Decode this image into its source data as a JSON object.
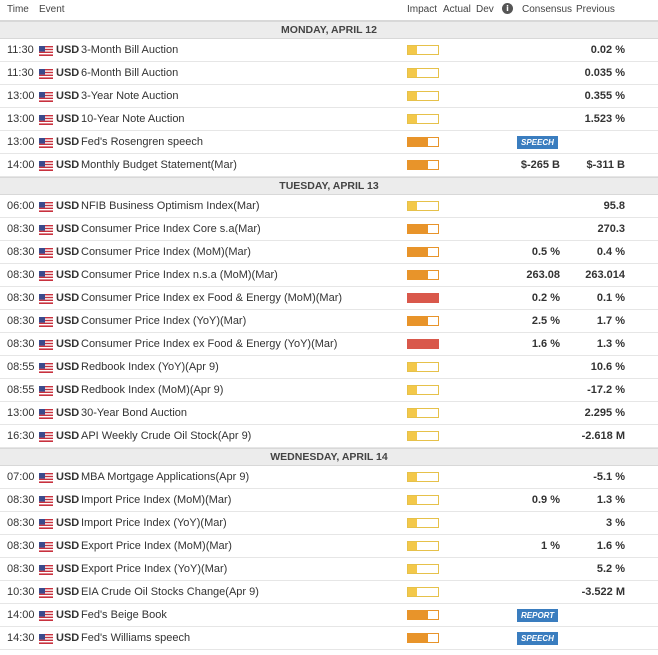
{
  "header": {
    "time": "Time",
    "event": "Event",
    "impact": "Impact",
    "actual": "Actual",
    "dev": "Dev",
    "info_icon": "i",
    "consensus": "Consensus",
    "previous": "Previous"
  },
  "colors": {
    "low": "#f3c84a",
    "medium": "#e8942a",
    "high": "#d9584b",
    "badge": "#3a7dbf"
  },
  "days": [
    {
      "label": "MONDAY, APRIL 12",
      "events": [
        {
          "time": "11:30",
          "currency": "USD",
          "flag": "us-flag-icon",
          "event": "3-Month Bill Auction",
          "impact": "low",
          "consensus": "",
          "previous": "0.02 %",
          "badge": ""
        },
        {
          "time": "11:30",
          "currency": "USD",
          "flag": "us-flag-icon",
          "event": "6-Month Bill Auction",
          "impact": "low",
          "consensus": "",
          "previous": "0.035 %",
          "badge": ""
        },
        {
          "time": "13:00",
          "currency": "USD",
          "flag": "us-flag-icon",
          "event": "3-Year Note Auction",
          "impact": "low",
          "consensus": "",
          "previous": "0.355 %",
          "badge": ""
        },
        {
          "time": "13:00",
          "currency": "USD",
          "flag": "us-flag-icon",
          "event": "10-Year Note Auction",
          "impact": "low",
          "consensus": "",
          "previous": "1.523 %",
          "badge": ""
        },
        {
          "time": "13:00",
          "currency": "USD",
          "flag": "us-flag-icon",
          "event": "Fed's Rosengren speech",
          "impact": "medium",
          "consensus": "",
          "previous": "",
          "badge": "SPEECH"
        },
        {
          "time": "14:00",
          "currency": "USD",
          "flag": "us-flag-icon",
          "event": "Monthly Budget Statement(Mar)",
          "impact": "medium",
          "consensus": "$-265 B",
          "previous": "$-311 B",
          "badge": ""
        }
      ]
    },
    {
      "label": "TUESDAY, APRIL 13",
      "events": [
        {
          "time": "06:00",
          "currency": "USD",
          "flag": "us-flag-icon",
          "event": "NFIB Business Optimism Index(Mar)",
          "impact": "low",
          "consensus": "",
          "previous": "95.8",
          "badge": ""
        },
        {
          "time": "08:30",
          "currency": "USD",
          "flag": "us-flag-icon",
          "event": "Consumer Price Index Core s.a(Mar)",
          "impact": "medium",
          "consensus": "",
          "previous": "270.3",
          "badge": ""
        },
        {
          "time": "08:30",
          "currency": "USD",
          "flag": "us-flag-icon",
          "event": "Consumer Price Index (MoM)(Mar)",
          "impact": "medium",
          "consensus": "0.5 %",
          "previous": "0.4 %",
          "badge": ""
        },
        {
          "time": "08:30",
          "currency": "USD",
          "flag": "us-flag-icon",
          "event": "Consumer Price Index n.s.a (MoM)(Mar)",
          "impact": "medium",
          "consensus": "263.08",
          "previous": "263.014",
          "badge": ""
        },
        {
          "time": "08:30",
          "currency": "USD",
          "flag": "us-flag-icon",
          "event": "Consumer Price Index ex Food & Energy (MoM)(Mar)",
          "impact": "high",
          "consensus": "0.2 %",
          "previous": "0.1 %",
          "badge": ""
        },
        {
          "time": "08:30",
          "currency": "USD",
          "flag": "us-flag-icon",
          "event": "Consumer Price Index (YoY)(Mar)",
          "impact": "medium",
          "consensus": "2.5 %",
          "previous": "1.7 %",
          "badge": ""
        },
        {
          "time": "08:30",
          "currency": "USD",
          "flag": "us-flag-icon",
          "event": "Consumer Price Index ex Food & Energy (YoY)(Mar)",
          "impact": "high",
          "consensus": "1.6 %",
          "previous": "1.3 %",
          "badge": ""
        },
        {
          "time": "08:55",
          "currency": "USD",
          "flag": "us-flag-icon",
          "event": "Redbook Index (YoY)(Apr 9)",
          "impact": "low",
          "consensus": "",
          "previous": "10.6 %",
          "badge": ""
        },
        {
          "time": "08:55",
          "currency": "USD",
          "flag": "us-flag-icon",
          "event": "Redbook Index (MoM)(Apr 9)",
          "impact": "low",
          "consensus": "",
          "previous": "-17.2 %",
          "badge": ""
        },
        {
          "time": "13:00",
          "currency": "USD",
          "flag": "us-flag-icon",
          "event": "30-Year Bond Auction",
          "impact": "low",
          "consensus": "",
          "previous": "2.295 %",
          "badge": ""
        },
        {
          "time": "16:30",
          "currency": "USD",
          "flag": "us-flag-icon",
          "event": "API Weekly Crude Oil Stock(Apr 9)",
          "impact": "low",
          "consensus": "",
          "previous": "-2.618 M",
          "badge": ""
        }
      ]
    },
    {
      "label": "WEDNESDAY, APRIL 14",
      "events": [
        {
          "time": "07:00",
          "currency": "USD",
          "flag": "us-flag-icon",
          "event": "MBA Mortgage Applications(Apr 9)",
          "impact": "low",
          "consensus": "",
          "previous": "-5.1 %",
          "badge": ""
        },
        {
          "time": "08:30",
          "currency": "USD",
          "flag": "us-flag-icon",
          "event": "Import Price Index (MoM)(Mar)",
          "impact": "low",
          "consensus": "0.9 %",
          "previous": "1.3 %",
          "badge": ""
        },
        {
          "time": "08:30",
          "currency": "USD",
          "flag": "us-flag-icon",
          "event": "Import Price Index (YoY)(Mar)",
          "impact": "low",
          "consensus": "",
          "previous": "3 %",
          "badge": ""
        },
        {
          "time": "08:30",
          "currency": "USD",
          "flag": "us-flag-icon",
          "event": "Export Price Index (MoM)(Mar)",
          "impact": "low",
          "consensus": "1 %",
          "previous": "1.6 %",
          "badge": ""
        },
        {
          "time": "08:30",
          "currency": "USD",
          "flag": "us-flag-icon",
          "event": "Export Price Index (YoY)(Mar)",
          "impact": "low",
          "consensus": "",
          "previous": "5.2 %",
          "badge": ""
        },
        {
          "time": "10:30",
          "currency": "USD",
          "flag": "us-flag-icon",
          "event": "EIA Crude Oil Stocks Change(Apr 9)",
          "impact": "low",
          "consensus": "",
          "previous": "-3.522 M",
          "badge": ""
        },
        {
          "time": "14:00",
          "currency": "USD",
          "flag": "us-flag-icon",
          "event": "Fed's Beige Book",
          "impact": "medium",
          "consensus": "",
          "previous": "",
          "badge": "REPORT"
        },
        {
          "time": "14:30",
          "currency": "USD",
          "flag": "us-flag-icon",
          "event": "Fed's Williams speech",
          "impact": "medium",
          "consensus": "",
          "previous": "",
          "badge": "SPEECH"
        }
      ]
    }
  ]
}
